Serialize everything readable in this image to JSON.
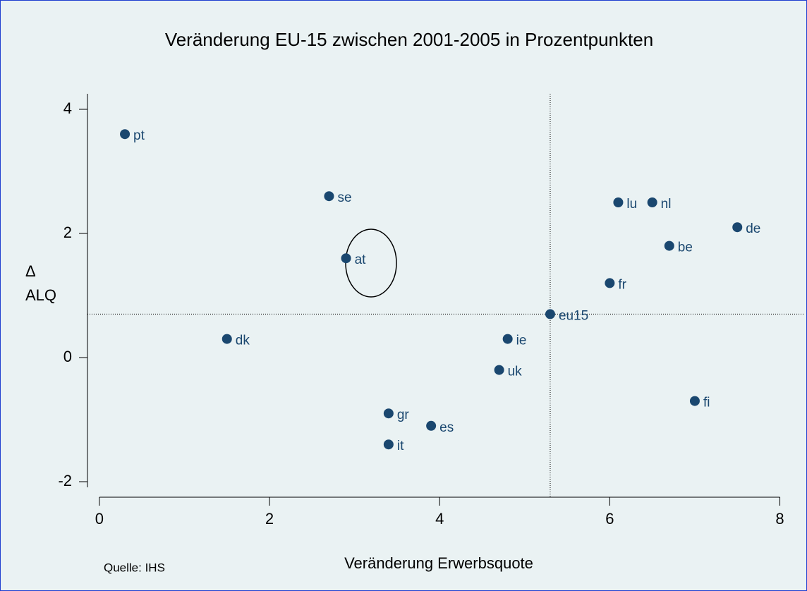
{
  "chart_data": {
    "type": "scatter",
    "title": "Veränderung EU-15 zwischen 2001-2005 in Prozentpunkten",
    "xlabel": "Veränderung Erwerbsquote",
    "ylabel": [
      "Δ",
      "ALQ"
    ],
    "note": "Quelle: IHS",
    "color": "#1a476f",
    "xlim": [
      -0.14,
      8.12
    ],
    "ylim": [
      -2.25,
      4.25
    ],
    "xticks": [
      0,
      2,
      4,
      6,
      8
    ],
    "yticks": [
      -2,
      0,
      2,
      4
    ],
    "reference_lines": {
      "x": 5.3,
      "y": 0.7
    },
    "series": [
      {
        "labels": [
          "pt",
          "se",
          "at",
          "dk",
          "gr",
          "es",
          "it",
          "ie",
          "uk",
          "eu15",
          "fr",
          "lu",
          "nl",
          "be",
          "de",
          "fi"
        ],
        "x": [
          0.3,
          2.7,
          2.9,
          1.5,
          3.4,
          3.9,
          3.4,
          4.8,
          4.7,
          5.3,
          6.0,
          6.1,
          6.5,
          6.7,
          7.5,
          7.0
        ],
        "values": [
          3.6,
          2.6,
          1.6,
          0.3,
          -0.9,
          -1.1,
          -1.4,
          0.3,
          -0.2,
          0.7,
          1.2,
          2.5,
          2.5,
          1.8,
          2.1,
          -0.7
        ]
      }
    ]
  }
}
